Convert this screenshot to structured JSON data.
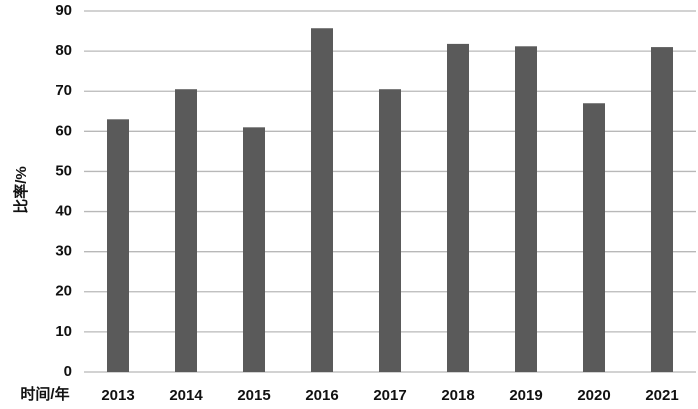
{
  "chart_data": {
    "type": "bar",
    "x_label": "时间/年",
    "y_label": "比率/%",
    "categories": [
      "2013",
      "2014",
      "2015",
      "2016",
      "2017",
      "2018",
      "2019",
      "2020",
      "2021"
    ],
    "values": [
      63,
      70.5,
      61,
      85.7,
      70.5,
      81.8,
      81.2,
      67,
      81
    ],
    "color": "#5a5a5a",
    "ylim": [
      0,
      90
    ],
    "yticks": [
      0,
      10,
      20,
      30,
      40,
      50,
      60,
      70,
      80,
      90
    ],
    "grid": true
  }
}
